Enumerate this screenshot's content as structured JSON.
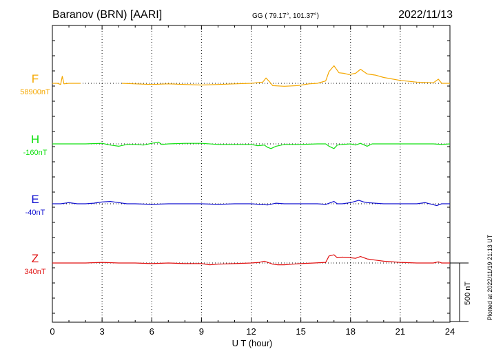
{
  "header": {
    "station": "Baranov (BRN)  [AARI]",
    "coords": "GG ( 79.17°, 101.37°)",
    "date": "2022/11/13"
  },
  "footer": {
    "plotted": "Plotted at 2022/11/19 21:13 UT"
  },
  "colors": {
    "F": "#f5a800",
    "H": "#10e010",
    "E": "#1010d0",
    "Z": "#e01010"
  },
  "chart_data": {
    "type": "line",
    "xlabel": "U T (hour)",
    "xlim": [
      0,
      24
    ],
    "x_ticks": [
      "0",
      "3",
      "6",
      "9",
      "12",
      "15",
      "18",
      "21",
      "24"
    ],
    "scale_bar": "500 nT",
    "scale_bar_nT": 500,
    "series": [
      {
        "name": "F",
        "baseline_label": "58900nT",
        "baseline_nT": 58900,
        "points": [
          [
            0,
            0
          ],
          [
            0.3,
            0
          ],
          [
            0.5,
            -10
          ],
          [
            0.6,
            60
          ],
          [
            0.7,
            -5
          ],
          [
            1.0,
            0
          ],
          [
            1.5,
            0
          ],
          [
            1.7,
            0
          ],
          [
            null,
            null
          ],
          [
            4.2,
            0
          ],
          [
            5,
            -5
          ],
          [
            6,
            -10
          ],
          [
            7,
            -5
          ],
          [
            8,
            -10
          ],
          [
            9,
            -15
          ],
          [
            10,
            -10
          ],
          [
            11,
            -5
          ],
          [
            12,
            0
          ],
          [
            12.7,
            10
          ],
          [
            12.9,
            45
          ],
          [
            13.1,
            15
          ],
          [
            13.3,
            -20
          ],
          [
            14,
            -25
          ],
          [
            14.8,
            -20
          ],
          [
            15.5,
            -5
          ],
          [
            16,
            0
          ],
          [
            16.5,
            20
          ],
          [
            16.7,
            100
          ],
          [
            17.0,
            150
          ],
          [
            17.3,
            90
          ],
          [
            17.6,
            85
          ],
          [
            17.9,
            75
          ],
          [
            18.3,
            85
          ],
          [
            18.6,
            120
          ],
          [
            19,
            80
          ],
          [
            19.5,
            70
          ],
          [
            20,
            50
          ],
          [
            21,
            25
          ],
          [
            22,
            10
          ],
          [
            23,
            5
          ],
          [
            23.3,
            35
          ],
          [
            23.5,
            0
          ],
          [
            24,
            0
          ]
        ]
      },
      {
        "name": "H",
        "baseline_label": "-160nT",
        "baseline_nT": -160,
        "points": [
          [
            0,
            0
          ],
          [
            1,
            0
          ],
          [
            2,
            0
          ],
          [
            3,
            5
          ],
          [
            3.5,
            -10
          ],
          [
            4,
            -20
          ],
          [
            4.5,
            -5
          ],
          [
            5,
            -5
          ],
          [
            5.5,
            -10
          ],
          [
            6,
            5
          ],
          [
            6.4,
            15
          ],
          [
            6.6,
            -5
          ],
          [
            7,
            0
          ],
          [
            8,
            5
          ],
          [
            9,
            5
          ],
          [
            10,
            -5
          ],
          [
            11,
            -5
          ],
          [
            11.5,
            -5
          ],
          [
            12,
            -5
          ],
          [
            12.4,
            -15
          ],
          [
            12.8,
            -10
          ],
          [
            13.0,
            -30
          ],
          [
            13.2,
            -40
          ],
          [
            13.5,
            -20
          ],
          [
            14,
            -5
          ],
          [
            15,
            -5
          ],
          [
            16,
            0
          ],
          [
            16.5,
            0
          ],
          [
            16.7,
            -20
          ],
          [
            17.0,
            -40
          ],
          [
            17.2,
            -10
          ],
          [
            17.5,
            -5
          ],
          [
            18,
            0
          ],
          [
            18.3,
            -10
          ],
          [
            18.6,
            5
          ],
          [
            19,
            -20
          ],
          [
            19.3,
            0
          ],
          [
            20,
            0
          ],
          [
            21,
            0
          ],
          [
            22,
            0
          ],
          [
            23,
            0
          ],
          [
            23.5,
            -5
          ],
          [
            24,
            0
          ]
        ]
      },
      {
        "name": "E",
        "baseline_label": "-40nT",
        "baseline_nT": -40,
        "points": [
          [
            0,
            0
          ],
          [
            0.5,
            0
          ],
          [
            1,
            10
          ],
          [
            1.5,
            0
          ],
          [
            2,
            0
          ],
          [
            2.5,
            5
          ],
          [
            3,
            15
          ],
          [
            3.5,
            20
          ],
          [
            4,
            10
          ],
          [
            4.5,
            0
          ],
          [
            5,
            0
          ],
          [
            6,
            -5
          ],
          [
            7,
            0
          ],
          [
            8,
            0
          ],
          [
            9,
            0
          ],
          [
            10,
            -5
          ],
          [
            11,
            0
          ],
          [
            12,
            0
          ],
          [
            12.5,
            -5
          ],
          [
            13,
            -10
          ],
          [
            13.5,
            5
          ],
          [
            14,
            0
          ],
          [
            15,
            0
          ],
          [
            16,
            0
          ],
          [
            16.5,
            -5
          ],
          [
            16.8,
            10
          ],
          [
            17,
            20
          ],
          [
            17.2,
            0
          ],
          [
            17.5,
            0
          ],
          [
            18,
            10
          ],
          [
            18.5,
            30
          ],
          [
            18.8,
            15
          ],
          [
            19,
            10
          ],
          [
            20,
            0
          ],
          [
            21,
            0
          ],
          [
            22,
            0
          ],
          [
            22.5,
            10
          ],
          [
            23.2,
            -15
          ],
          [
            23.5,
            0
          ],
          [
            24,
            0
          ]
        ]
      },
      {
        "name": "Z",
        "baseline_label": "340nT",
        "baseline_nT": 340,
        "points": [
          [
            0,
            0
          ],
          [
            1,
            0
          ],
          [
            2,
            0
          ],
          [
            3,
            5
          ],
          [
            4,
            0
          ],
          [
            5,
            0
          ],
          [
            6,
            -5
          ],
          [
            7,
            0
          ],
          [
            8,
            -5
          ],
          [
            9,
            -5
          ],
          [
            9.5,
            -15
          ],
          [
            10,
            -10
          ],
          [
            11,
            -5
          ],
          [
            12,
            0
          ],
          [
            12.5,
            5
          ],
          [
            12.8,
            15
          ],
          [
            13.0,
            5
          ],
          [
            13.3,
            -10
          ],
          [
            13.6,
            -15
          ],
          [
            14,
            -15
          ],
          [
            14.5,
            -10
          ],
          [
            15,
            -5
          ],
          [
            15.8,
            0
          ],
          [
            16.5,
            5
          ],
          [
            16.7,
            60
          ],
          [
            17.0,
            70
          ],
          [
            17.2,
            45
          ],
          [
            17.5,
            50
          ],
          [
            18,
            45
          ],
          [
            18.3,
            40
          ],
          [
            18.6,
            55
          ],
          [
            19,
            35
          ],
          [
            19.5,
            25
          ],
          [
            20,
            15
          ],
          [
            21,
            5
          ],
          [
            22,
            0
          ],
          [
            23,
            0
          ],
          [
            23.3,
            10
          ],
          [
            23.5,
            0
          ],
          [
            24,
            0
          ]
        ]
      }
    ]
  }
}
